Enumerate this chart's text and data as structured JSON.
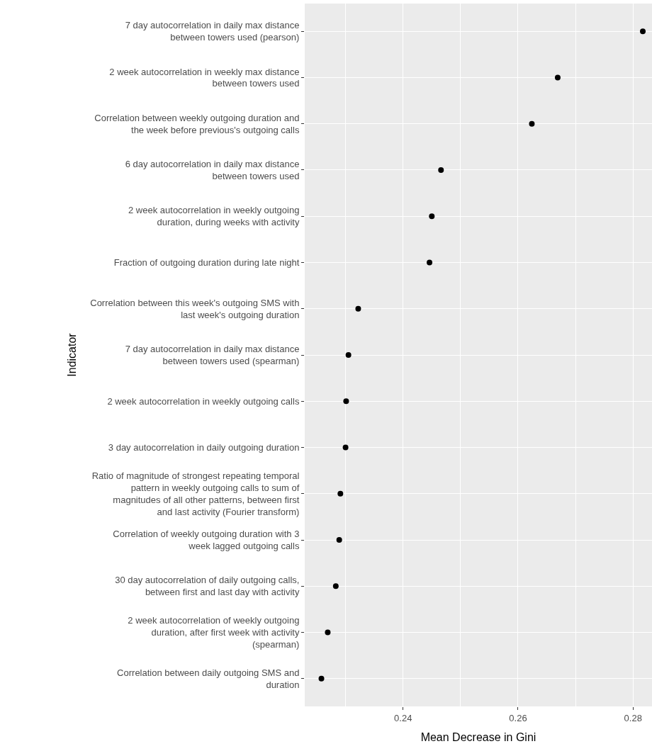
{
  "chart_data": {
    "type": "scatter",
    "xlabel": "Mean Decrease in Gini",
    "ylabel": "Indicator",
    "categories": [
      "7 day autocorrelation in daily max distance\nbetween towers used (pearson)",
      "2 week autocorrelation in weekly max distance\nbetween towers used",
      "Correlation between weekly outgoing duration and\nthe week before previous's outgoing calls",
      "6 day autocorrelation in daily max distance\nbetween towers used",
      "2 week autocorrelation in weekly outgoing\nduration, during weeks with activity",
      "Fraction of outgoing duration during late night",
      "Correlation between this week's outgoing SMS with\nlast week's outgoing duration",
      "7 day autocorrelation in daily max distance\nbetween towers used (spearman)",
      "2 week autocorrelation in weekly outgoing calls",
      "3 day autocorrelation in daily outgoing duration",
      "Ratio of magnitude of strongest repeating temporal\npattern in weekly outgoing calls to sum of\nmagnitudes of all other patterns, between first\nand last activity (Fourier transform)",
      "Correlation of weekly outgoing duration with 3\nweek lagged outgoing calls",
      "30 day autocorrelation of daily outgoing calls,\nbetween first and last day with activity",
      "2 week autocorrelation of weekly outgoing\nduration, after first week with activity\n(spearman)",
      "Correlation between daily outgoing SMS and\nduration"
    ],
    "series": [
      {
        "color": "#000000",
        "values": [
          0.2817,
          0.2669,
          0.2624,
          0.2466,
          0.245,
          0.2446,
          0.2322,
          0.2305,
          0.2301,
          0.23,
          0.2291,
          0.2289,
          0.2283,
          0.2269,
          0.2258
        ]
      }
    ],
    "orientation": "horizontal",
    "marker": "circle",
    "xlim": [
      0.2229,
      0.2833
    ],
    "xticks": [
      0.24,
      0.26,
      0.28
    ],
    "grid": true,
    "legend": false
  }
}
